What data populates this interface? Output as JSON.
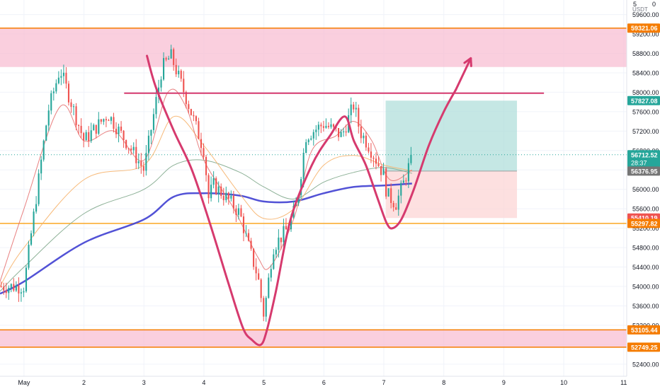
{
  "chart_data": {
    "type": "candlestick",
    "title": "",
    "currency": "USDT",
    "y_axis_top_label": "5",
    "y_axis_corner_label": "0",
    "ylim": [
      52150,
      59900
    ],
    "y_ticks": [
      52400,
      52800,
      53200,
      53600,
      54000,
      54400,
      54800,
      55200,
      55600,
      56000,
      56400,
      56800,
      57200,
      57600,
      58000,
      58400,
      58800,
      59200,
      59600
    ],
    "y_tick_labels": [
      "52400.00",
      "52800.00",
      "53200.00",
      "53600.00",
      "54000.00",
      "54400.00",
      "54800.00",
      "55200.00",
      "55600.00",
      "56000.00",
      "56400.00",
      "56800.00",
      "57200.00",
      "57600.00",
      "58000.00",
      "58400.00",
      "58800.00",
      "59200.00",
      "59600.00"
    ],
    "x_ticks": [
      {
        "label": "May",
        "t": 0
      },
      {
        "label": "2",
        "t": 1
      },
      {
        "label": "3",
        "t": 2
      },
      {
        "label": "4",
        "t": 3
      },
      {
        "label": "5",
        "t": 4
      },
      {
        "label": "6",
        "t": 5
      },
      {
        "label": "7",
        "t": 6
      },
      {
        "label": "8",
        "t": 7
      },
      {
        "label": "9",
        "t": 8
      },
      {
        "label": "10",
        "t": 9
      },
      {
        "label": "11",
        "t": 10
      }
    ],
    "xlim": [
      -0.4,
      10.05
    ],
    "price_labels": [
      {
        "value": 59321.06,
        "text": "59321.06",
        "color": "#f57c00"
      },
      {
        "value": 57827.08,
        "text": "57827.08",
        "color": "#26a69a"
      },
      {
        "value": 56712.52,
        "text": "56712.52",
        "color": "#26a69a",
        "sub": "28:37"
      },
      {
        "value": 56376.95,
        "text": "56376.95",
        "color": "#757575"
      },
      {
        "value": 55410.19,
        "text": "55410.19",
        "color": "#ef5350"
      },
      {
        "value": 55297.82,
        "text": "55297.82",
        "color": "#f57c00"
      },
      {
        "value": 53105.44,
        "text": "53105.44",
        "color": "#f57c00"
      },
      {
        "value": 52749.25,
        "text": "52749.25",
        "color": "#f57c00"
      }
    ],
    "zones": [
      {
        "name": "resistance-zone",
        "from": 58520,
        "to": 59321.06,
        "color": "#f8bbd0"
      },
      {
        "name": "support-zone",
        "from": 52749.25,
        "to": 53105.44,
        "color": "#f8bbd0"
      }
    ],
    "h_lines": [
      {
        "value": 59321.06,
        "color": "#f57c00"
      },
      {
        "value": 55297.82,
        "color": "#f9a825"
      },
      {
        "value": 53105.44,
        "color": "#f57c00"
      },
      {
        "value": 52749.25,
        "color": "#f57c00"
      }
    ],
    "resistance_line": {
      "t_start": 1.67,
      "t_end": 8.67,
      "value": 57980,
      "color": "#d63a6e"
    },
    "position": {
      "t_start": 6.03,
      "t_end": 8.22,
      "entry": 56376.95,
      "target": 57827.08,
      "stop": 55410.19,
      "profit_color": "#b2dfdb",
      "loss_color": "#fcd5d5"
    },
    "current_price": 56712.52,
    "colors": {
      "up": "#26a69a",
      "down": "#ef5350",
      "ema_fast": "#e57373",
      "ema_mid": "#f6b26b",
      "ema_slow": "#81a88c",
      "ema_long": "#3f3fd1",
      "drawing": "#d63a6e"
    },
    "candles_per_day": 24,
    "key_points": [
      [
        0.0,
        54000
      ],
      [
        0.4,
        57600
      ],
      [
        0.6,
        58480
      ],
      [
        1.0,
        57000
      ],
      [
        1.4,
        57550
      ],
      [
        1.8,
        56800
      ],
      [
        2.0,
        56400
      ],
      [
        2.1,
        57100
      ],
      [
        2.3,
        58500
      ],
      [
        2.45,
        58750
      ],
      [
        2.7,
        57900
      ],
      [
        3.0,
        56800
      ],
      [
        3.08,
        55800
      ],
      [
        3.15,
        56100
      ],
      [
        3.4,
        55800
      ],
      [
        3.6,
        55500
      ],
      [
        3.75,
        54800
      ],
      [
        3.9,
        54200
      ],
      [
        4.0,
        53400
      ],
      [
        4.15,
        54800
      ],
      [
        4.4,
        55200
      ],
      [
        4.55,
        55700
      ],
      [
        4.7,
        57100
      ],
      [
        5.0,
        57350
      ],
      [
        5.3,
        57100
      ],
      [
        5.5,
        57750
      ],
      [
        5.6,
        57200
      ],
      [
        5.75,
        56900
      ],
      [
        6.0,
        56300
      ],
      [
        6.05,
        55900
      ],
      [
        6.2,
        55700
      ],
      [
        6.35,
        56200
      ],
      [
        6.47,
        56700
      ]
    ],
    "ema_long": [
      [
        -0.4,
        53850
      ],
      [
        0.0,
        54100
      ],
      [
        1.0,
        54900
      ],
      [
        2.0,
        55380
      ],
      [
        2.5,
        55850
      ],
      [
        3.0,
        55920
      ],
      [
        3.6,
        55870
      ],
      [
        4.0,
        55750
      ],
      [
        4.5,
        55750
      ],
      [
        5.0,
        55920
      ],
      [
        5.5,
        56050
      ],
      [
        6.0,
        56080
      ],
      [
        6.47,
        56120
      ]
    ],
    "ema_slow": [
      [
        -0.4,
        53900
      ],
      [
        0.0,
        54400
      ],
      [
        1.0,
        55500
      ],
      [
        2.0,
        56000
      ],
      [
        2.5,
        56500
      ],
      [
        3.0,
        56600
      ],
      [
        3.6,
        56350
      ],
      [
        4.0,
        56050
      ],
      [
        4.5,
        55800
      ],
      [
        5.0,
        56150
      ],
      [
        5.5,
        56350
      ],
      [
        6.0,
        56450
      ],
      [
        6.47,
        56330
      ]
    ],
    "ema_mid": [
      [
        -0.4,
        54000
      ],
      [
        0.0,
        54800
      ],
      [
        1.0,
        56200
      ],
      [
        2.0,
        56500
      ],
      [
        2.5,
        57500
      ],
      [
        3.0,
        56900
      ],
      [
        3.6,
        55900
      ],
      [
        4.0,
        55400
      ],
      [
        4.5,
        55600
      ],
      [
        5.0,
        56500
      ],
      [
        5.5,
        56700
      ],
      [
        6.0,
        56500
      ],
      [
        6.47,
        56380
      ]
    ],
    "ema_fast": [
      [
        -0.4,
        54100
      ],
      [
        0.0,
        55600
      ],
      [
        0.6,
        57700
      ],
      [
        1.0,
        57000
      ],
      [
        1.5,
        57200
      ],
      [
        2.0,
        56600
      ],
      [
        2.4,
        58000
      ],
      [
        2.7,
        57700
      ],
      [
        3.0,
        56600
      ],
      [
        3.5,
        55600
      ],
      [
        3.9,
        54600
      ],
      [
        4.1,
        54400
      ],
      [
        4.5,
        55400
      ],
      [
        4.8,
        56800
      ],
      [
        5.2,
        57100
      ],
      [
        5.5,
        57400
      ],
      [
        5.8,
        57000
      ],
      [
        6.1,
        56200
      ],
      [
        6.47,
        56400
      ]
    ],
    "drawing_path": [
      [
        2.05,
        58750
      ],
      [
        2.2,
        58100
      ],
      [
        2.5,
        57200
      ],
      [
        2.8,
        56400
      ],
      [
        3.1,
        55300
      ],
      [
        3.4,
        54100
      ],
      [
        3.65,
        53150
      ],
      [
        3.8,
        52900
      ],
      [
        3.95,
        52800
      ],
      [
        4.05,
        53100
      ],
      [
        4.2,
        53900
      ],
      [
        4.45,
        55400
      ],
      [
        4.8,
        56500
      ],
      [
        5.1,
        57100
      ],
      [
        5.35,
        57500
      ],
      [
        5.5,
        57000
      ],
      [
        5.7,
        56500
      ],
      [
        5.9,
        55800
      ],
      [
        6.05,
        55300
      ],
      [
        6.15,
        55200
      ],
      [
        6.3,
        55400
      ],
      [
        6.5,
        56000
      ],
      [
        6.75,
        56900
      ],
      [
        7.0,
        57600
      ],
      [
        7.2,
        58050
      ]
    ],
    "arrow": {
      "from": [
        7.2,
        58050
      ],
      "to": [
        7.45,
        58700
      ]
    }
  }
}
